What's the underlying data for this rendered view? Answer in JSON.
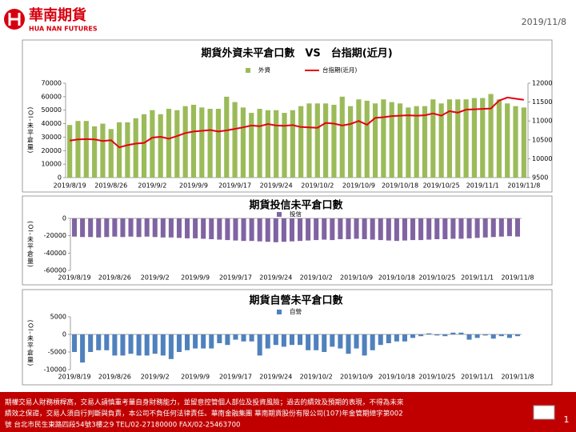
{
  "header": {
    "logo_name": "華南期貨",
    "logo_en": "HUA NAN FUTURES",
    "date": "2019/11/8"
  },
  "chart_data": [
    {
      "type": "bar",
      "title": "期貨外資未平倉口數　VS　台指期(近月)",
      "y_label": "(OI-未平倉量)",
      "categories": [
        "2019/8/19",
        null,
        null,
        null,
        null,
        "2019/8/26",
        null,
        null,
        null,
        null,
        "2019/9/2",
        null,
        null,
        null,
        null,
        "2019/9/9",
        null,
        null,
        null,
        null,
        "2019/9/17",
        null,
        null,
        null,
        null,
        "2019/9/24",
        null,
        null,
        null,
        null,
        "2019/10/2",
        null,
        null,
        null,
        null,
        "2019/10/9",
        null,
        null,
        null,
        null,
        "2019/10/18",
        null,
        null,
        null,
        null,
        "2019/10/25",
        null,
        null,
        null,
        null,
        "2019/11/1",
        null,
        null,
        null,
        null,
        "2019/11/8"
      ],
      "series": [
        {
          "name": "外資",
          "color": "#9bbb59",
          "values": [
            39000,
            42000,
            42000,
            38000,
            40000,
            36000,
            41000,
            41000,
            44000,
            47000,
            50000,
            47000,
            51000,
            50000,
            53000,
            54000,
            52000,
            51000,
            51000,
            60000,
            56000,
            52000,
            48000,
            51000,
            50000,
            50000,
            48000,
            50000,
            53000,
            55000,
            55000,
            55000,
            54000,
            60000,
            53000,
            58000,
            57000,
            55000,
            58000,
            56000,
            55000,
            52000,
            53000,
            53000,
            58000,
            55000,
            58000,
            58000,
            58000,
            59000,
            59000,
            62000,
            58000,
            55000,
            53000,
            52000
          ]
        },
        {
          "name": "台指期(近月)",
          "color": "#e60012",
          "type": "line",
          "axis": "y2",
          "values": [
            10480,
            10510,
            10520,
            10510,
            10470,
            10490,
            10300,
            10360,
            10400,
            10420,
            10560,
            10580,
            10530,
            10600,
            10680,
            10720,
            10740,
            10760,
            10720,
            10750,
            10790,
            10830,
            10880,
            10860,
            10920,
            10880,
            10870,
            10890,
            10840,
            10830,
            10820,
            10950,
            10930,
            10880,
            10920,
            11000,
            10900,
            11080,
            11100,
            11130,
            11140,
            11150,
            11140,
            11150,
            11200,
            11140,
            11260,
            11220,
            11300,
            11310,
            11320,
            11330,
            11540,
            11620,
            11590,
            11560
          ]
        }
      ],
      "ylim": [
        0,
        70000
      ],
      "yticks": [
        0,
        10000,
        20000,
        30000,
        40000,
        50000,
        60000,
        70000
      ],
      "y2lim": [
        9500,
        12000
      ],
      "y2ticks": [
        9500,
        10000,
        10500,
        11000,
        11500,
        12000
      ]
    },
    {
      "type": "bar",
      "title": "期貨投信未平倉口數",
      "y_label": "(OI-未平倉量)",
      "categories": [
        "2019/8/19",
        null,
        null,
        null,
        null,
        "2019/8/26",
        null,
        null,
        null,
        null,
        "2019/9/2",
        null,
        null,
        null,
        null,
        "2019/9/9",
        null,
        null,
        null,
        null,
        "2019/9/17",
        null,
        null,
        null,
        null,
        "2019/9/24",
        null,
        null,
        null,
        null,
        "2019/10/2",
        null,
        null,
        null,
        null,
        "2019/10/9",
        null,
        null,
        null,
        null,
        "2019/10/18",
        null,
        null,
        null,
        null,
        "2019/10/25",
        null,
        null,
        null,
        null,
        "2019/11/1",
        null,
        null,
        null,
        null,
        "2019/11/8"
      ],
      "series": [
        {
          "name": "投信",
          "color": "#8064a2",
          "values": [
            -21000,
            -21500,
            -21500,
            -22000,
            -21500,
            -21000,
            -21500,
            -21000,
            -21500,
            -21000,
            -21500,
            -22000,
            -22000,
            -22500,
            -23000,
            -23000,
            -23500,
            -24000,
            -24500,
            -25000,
            -25500,
            -26000,
            -26000,
            -26500,
            -27000,
            -27500,
            -27000,
            -26500,
            -26000,
            -25500,
            -25000,
            -24500,
            -25000,
            -24000,
            -24000,
            -23500,
            -24000,
            -24500,
            -25000,
            -25500,
            -26000,
            -25500,
            -25000,
            -25000,
            -24500,
            -24000,
            -24000,
            -23500,
            -23500,
            -23000,
            -22500,
            -22000,
            -21500,
            -21000,
            -20500,
            -21000
          ]
        }
      ],
      "ylim": [
        -60000,
        0
      ],
      "yticks": [
        -60000,
        -40000,
        -20000,
        0
      ]
    },
    {
      "type": "bar",
      "title": "期貨自營未平倉口數",
      "y_label": "(OI-未平倉量)",
      "categories": [
        "2019/8/19",
        null,
        null,
        null,
        null,
        "2019/8/26",
        null,
        null,
        null,
        null,
        "2019/9/2",
        null,
        null,
        null,
        null,
        "2019/9/9",
        null,
        null,
        null,
        null,
        "2019/9/17",
        null,
        null,
        null,
        null,
        "2019/9/24",
        null,
        null,
        null,
        null,
        "2019/10/2",
        null,
        null,
        null,
        null,
        "2019/10/9",
        null,
        null,
        null,
        null,
        "2019/10/18",
        null,
        null,
        null,
        null,
        "2019/10/25",
        null,
        null,
        null,
        null,
        "2019/11/1",
        null,
        null,
        null,
        null,
        "2019/11/8"
      ],
      "series": [
        {
          "name": "自營",
          "color": "#4f81bd",
          "values": [
            -5000,
            -8000,
            -5000,
            -4500,
            -4500,
            -6000,
            -6000,
            -5500,
            -6000,
            -6000,
            -5500,
            -6000,
            -7000,
            -5000,
            -4500,
            -4000,
            -4000,
            -4000,
            -2500,
            -3000,
            -1500,
            -2000,
            -2000,
            -6000,
            -4000,
            -3000,
            -3500,
            -3000,
            -3000,
            -4500,
            -4500,
            -5000,
            -3500,
            -4000,
            -5500,
            -4000,
            -6000,
            -4500,
            -3000,
            -2500,
            -2000,
            -2000,
            -1000,
            -500,
            300,
            -300,
            -500,
            500,
            500,
            -1500,
            -1000,
            -300,
            -1200,
            -500,
            -1000,
            -500
          ]
        }
      ],
      "ylim": [
        -10000,
        5000
      ],
      "yticks": [
        -10000,
        -5000,
        0,
        5000
      ]
    }
  ],
  "footer": {
    "lines": [
      "期權交易人財務槓桿高，交易人請慎重考量自身財務能力，並留意控管個人部位及投資風險；過去的績效及預期的表現，不得為未來",
      "績效之保證，交易人須自行判斷與負責，本公司不負任何法律責任。華南金融集團 華南期貨股份有限公司(107)年金管期總字第002",
      "號 台北市民生東路四段54號3樓之9 TEL/02-27180000 FAX/02-25463700"
    ],
    "page": "1"
  }
}
